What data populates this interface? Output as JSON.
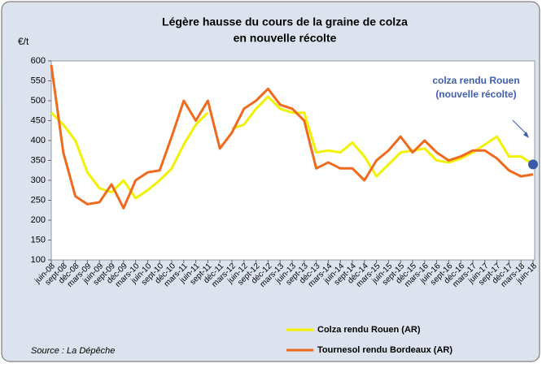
{
  "chart_data": {
    "type": "line",
    "title": [
      "Légère hausse du cours de la graine de colza",
      "en nouvelle récolte"
    ],
    "y_label": "€/t",
    "source": "Source : La Dépêche",
    "annotation": [
      "colza rendu Rouen",
      "(nouvelle récolte)"
    ],
    "categories": [
      "juin-08",
      "sept-08",
      "déc-08",
      "mars-09",
      "juin-09",
      "sept-09",
      "déc-09",
      "mars-10",
      "juin-10",
      "sept-10",
      "déc-10",
      "mars-11",
      "juin-11",
      "sept-11",
      "déc-11",
      "mars-12",
      "juin-12",
      "sept-12",
      "déc-12",
      "mars-13",
      "juin-13",
      "sept-13",
      "déc-13",
      "mars-14",
      "juin-14",
      "sept-14",
      "déc-14",
      "mars-15",
      "juin-15",
      "sept-15",
      "déc-15",
      "mars-16",
      "juin-16",
      "sept-16",
      "déc-16",
      "mars-17",
      "juin-17",
      "sept-17",
      "déc-17",
      "mars-18",
      "juin-18"
    ],
    "series": [
      {
        "name": "Colza rendu Rouen (AR)",
        "color": "#f2f200",
        "values": [
          470,
          440,
          400,
          320,
          280,
          270,
          300,
          255,
          275,
          300,
          330,
          390,
          440,
          470,
          null,
          430,
          440,
          480,
          510,
          480,
          470,
          470,
          370,
          375,
          370,
          395,
          360,
          310,
          340,
          370,
          375,
          380,
          350,
          345,
          355,
          370,
          390,
          410,
          360,
          360,
          340
        ]
      },
      {
        "name": "Tournesol rendu Bordeaux (AR)",
        "color": "#f06a1e",
        "values": [
          590,
          370,
          260,
          240,
          245,
          290,
          230,
          300,
          320,
          325,
          410,
          500,
          450,
          500,
          380,
          420,
          480,
          500,
          530,
          490,
          480,
          450,
          330,
          345,
          330,
          330,
          300,
          350,
          375,
          410,
          370,
          400,
          370,
          350,
          360,
          375,
          375,
          355,
          325,
          310,
          315
        ]
      }
    ],
    "ylim": [
      100,
      600
    ],
    "yticks": [
      100,
      150,
      200,
      250,
      300,
      350,
      400,
      450,
      500,
      550,
      600
    ],
    "grid": false
  }
}
